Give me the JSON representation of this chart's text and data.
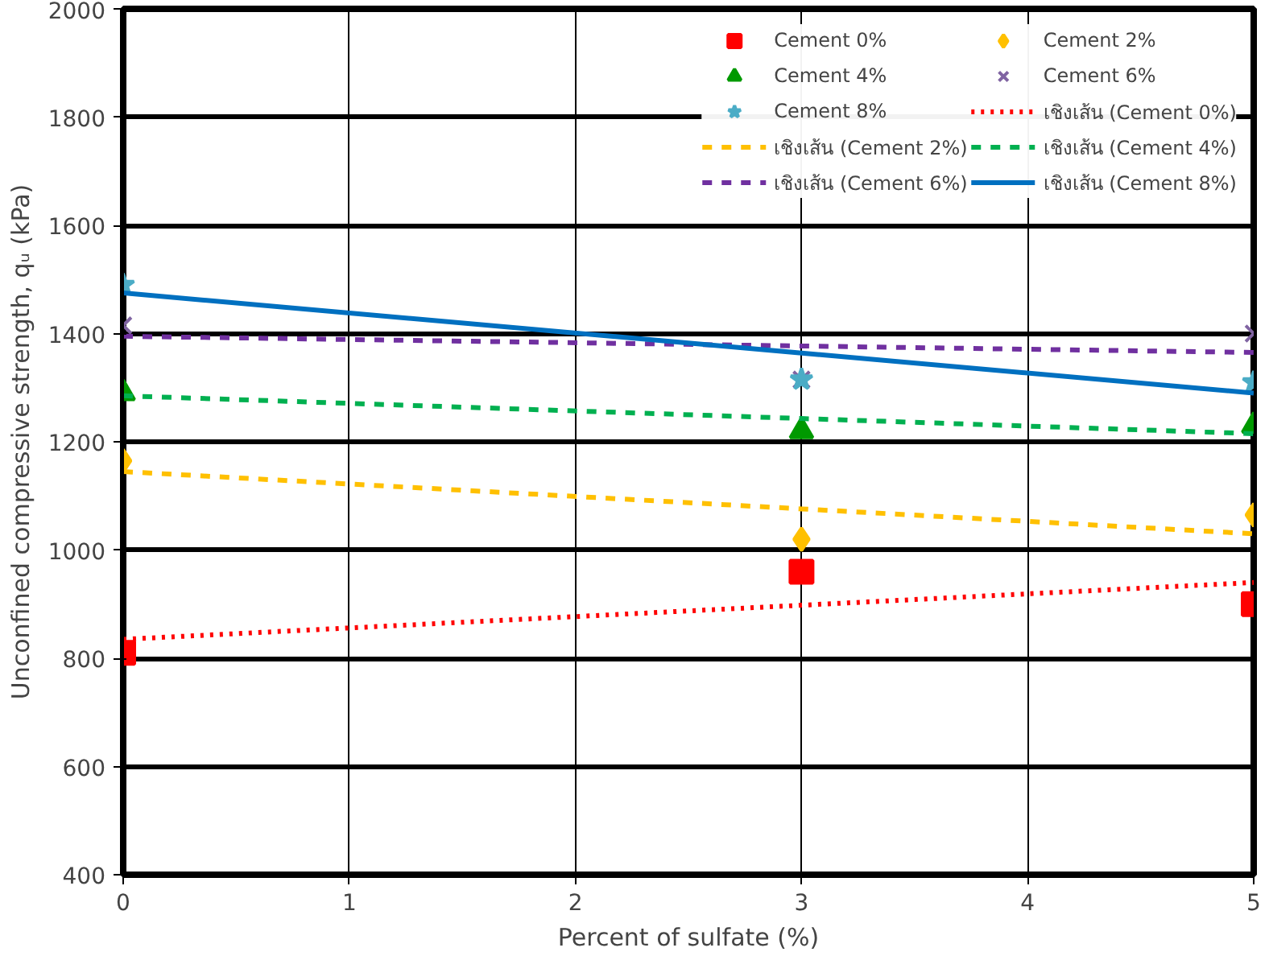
{
  "chart_data": {
    "type": "scatter",
    "xlabel": "Percent of sulfate (%)",
    "ylabel": "Unconfined compressive strength, qᵤ (kPa)",
    "x": [
      0,
      3,
      5
    ],
    "xlim": [
      0,
      5
    ],
    "xticks": [
      0,
      1,
      2,
      3,
      4,
      5
    ],
    "ylim": [
      400,
      2000
    ],
    "yticks": [
      400,
      600,
      800,
      1000,
      1200,
      1400,
      1600,
      1800,
      2000
    ],
    "grid": true,
    "legend": "top right",
    "series": [
      {
        "name": "Cement 0%",
        "color": "#ff0000",
        "marker": "square",
        "values": [
          810,
          960,
          900
        ]
      },
      {
        "name": "Cement 2%",
        "color": "#ffc000",
        "marker": "diamond",
        "values": [
          1165,
          1020,
          1065
        ]
      },
      {
        "name": "Cement 4%",
        "color": "#009900",
        "marker": "triangle",
        "values": [
          1290,
          1220,
          1230
        ]
      },
      {
        "name": "Cement 6%",
        "color": "#8064a2",
        "marker": "cross",
        "values": [
          1415,
          1315,
          1400
        ]
      },
      {
        "name": "Cement 8%",
        "color": "#4bacc6",
        "marker": "star",
        "values": [
          1490,
          1315,
          1310
        ]
      },
      {
        "name": "เชิงเส้น (Cement 0%)",
        "type": "line",
        "color": "#ff0000",
        "line_style": "dotted",
        "values": [
          835,
          898,
          940
        ]
      },
      {
        "name": "เชิงเส้น (Cement 2%)",
        "type": "line",
        "color": "#ffc000",
        "line_style": "dashed",
        "values": [
          1145,
          1076,
          1030
        ]
      },
      {
        "name": "เชิงเส้น (Cement 4%)",
        "type": "line",
        "color": "#00b050",
        "line_style": "dashed",
        "values": [
          1285,
          1243,
          1215
        ]
      },
      {
        "name": "เชิงเส้น (Cement 6%)",
        "type": "line",
        "color": "#7030a0",
        "line_style": "dashed",
        "values": [
          1395,
          1377,
          1365
        ]
      },
      {
        "name": "เชิงเส้น (Cement 8%)",
        "type": "line",
        "color": "#0070c0",
        "line_style": "solid",
        "values": [
          1475,
          1364,
          1290
        ]
      }
    ]
  }
}
